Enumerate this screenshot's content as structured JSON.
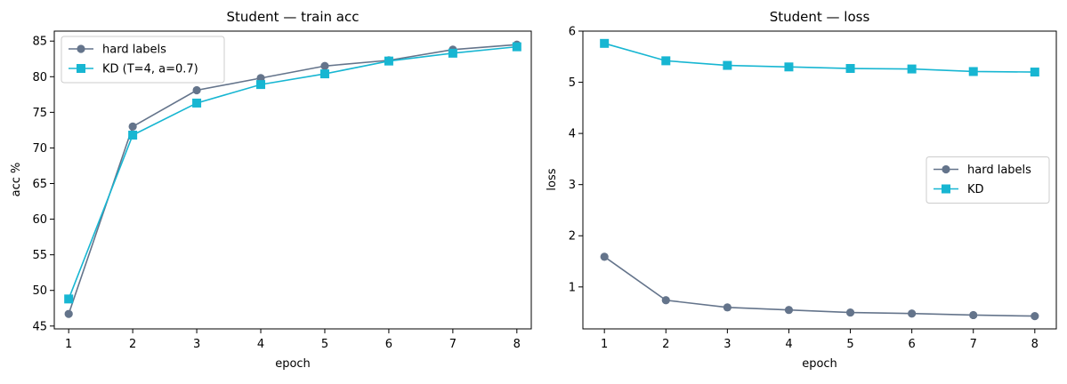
{
  "chart_data": [
    {
      "type": "line",
      "title": "Student — train acc",
      "xlabel": "epoch",
      "ylabel": "acc %",
      "x": [
        1,
        2,
        3,
        4,
        5,
        6,
        7,
        8
      ],
      "xlim": [
        0.775,
        8.225
      ],
      "ylim": [
        44.6,
        86.4
      ],
      "yticks": [
        45,
        50,
        55,
        60,
        65,
        70,
        75,
        80,
        85
      ],
      "grid": false,
      "legend_position": "top-left",
      "series": [
        {
          "name": "hard labels",
          "color": "#64748b",
          "marker": "circle",
          "values": [
            46.7,
            73.0,
            78.1,
            79.8,
            81.5,
            82.3,
            83.8,
            84.5
          ]
        },
        {
          "name": "KD (T=4, a=0.7)",
          "color": "#17b6d2",
          "marker": "square",
          "values": [
            48.8,
            71.8,
            76.3,
            78.9,
            80.4,
            82.2,
            83.3,
            84.2
          ]
        }
      ]
    },
    {
      "type": "line",
      "title": "Student — loss",
      "xlabel": "epoch",
      "ylabel": "loss",
      "x": [
        1,
        2,
        3,
        4,
        5,
        6,
        7,
        8
      ],
      "xlim": [
        0.65,
        8.35
      ],
      "ylim": [
        0.18,
        6.0
      ],
      "yticks": [
        1,
        2,
        3,
        4,
        5,
        6
      ],
      "grid": false,
      "legend_position": "center-right",
      "series": [
        {
          "name": "hard labels",
          "color": "#64748b",
          "marker": "circle",
          "values": [
            1.59,
            0.74,
            0.6,
            0.55,
            0.5,
            0.48,
            0.45,
            0.43
          ]
        },
        {
          "name": "KD",
          "color": "#17b6d2",
          "marker": "square",
          "values": [
            5.76,
            5.42,
            5.33,
            5.3,
            5.27,
            5.26,
            5.21,
            5.2
          ]
        }
      ]
    }
  ]
}
